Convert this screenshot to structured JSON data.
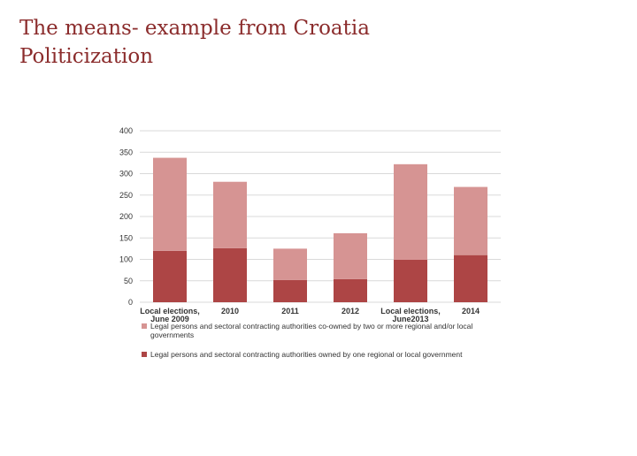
{
  "title": {
    "line1": "The means- example from Croatia",
    "line2": "Politicization"
  },
  "colors": {
    "title": "#8b2c2c",
    "series_bottom": "#ad4545",
    "series_top": "#d69493",
    "grid": "#d9d9d9"
  },
  "chart_data": {
    "type": "bar",
    "stacked": true,
    "categories": [
      "Local elections, June 2009",
      "2010",
      "2011",
      "2012",
      "Local elections, June2013",
      "2014"
    ],
    "series": [
      {
        "name": "Legal persons and sectoral contracting authorities owned by one regional or local government",
        "values": [
          120,
          126,
          52,
          54,
          99,
          110
        ],
        "color": "#ad4545"
      },
      {
        "name": "Legal persons and sectoral contracting authorities co-owned by two or more regional and/or local governments",
        "values": [
          217,
          155,
          73,
          107,
          223,
          159
        ],
        "color": "#d69493"
      }
    ],
    "ylim": [
      0,
      400
    ],
    "yticks": [
      0,
      50,
      100,
      150,
      200,
      250,
      300,
      350,
      400
    ],
    "grid": true,
    "legend": "bottom"
  }
}
